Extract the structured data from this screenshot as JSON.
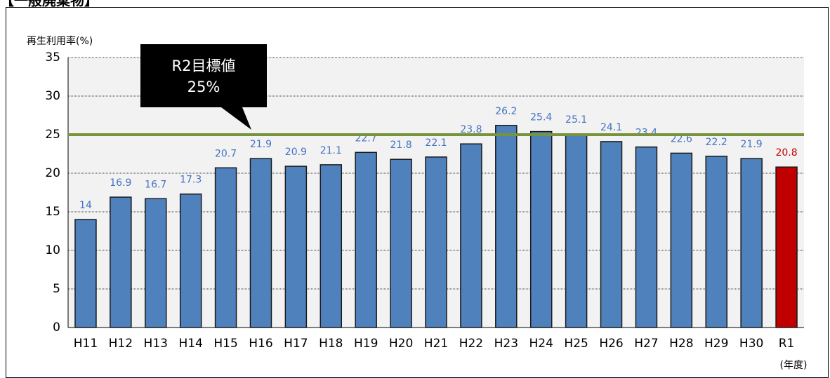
{
  "header": "【一般廃棄物】",
  "chart_data": {
    "type": "bar",
    "y_label": "再生利用率(%)",
    "x_label": "(年度)",
    "categories": [
      "H11",
      "H12",
      "H13",
      "H14",
      "H15",
      "H16",
      "H17",
      "H18",
      "H19",
      "H20",
      "H21",
      "H22",
      "H23",
      "H24",
      "H25",
      "H26",
      "H27",
      "H28",
      "H29",
      "H30",
      "R1"
    ],
    "values": [
      14,
      16.9,
      16.7,
      17.3,
      20.7,
      21.9,
      20.9,
      21.1,
      22.7,
      21.8,
      22.1,
      23.8,
      26.2,
      25.4,
      25.1,
      24.1,
      23.4,
      22.6,
      22.2,
      21.9,
      20.8
    ],
    "colors": [
      "#4f81bd",
      "#4f81bd",
      "#4f81bd",
      "#4f81bd",
      "#4f81bd",
      "#4f81bd",
      "#4f81bd",
      "#4f81bd",
      "#4f81bd",
      "#4f81bd",
      "#4f81bd",
      "#4f81bd",
      "#4f81bd",
      "#4f81bd",
      "#4f81bd",
      "#4f81bd",
      "#4f81bd",
      "#4f81bd",
      "#4f81bd",
      "#4f81bd",
      "#c00000"
    ],
    "ylim": [
      0,
      35
    ],
    "yticks": [
      0,
      5,
      10,
      15,
      20,
      25,
      30,
      35
    ],
    "grid": true,
    "reference_line": {
      "value": 25,
      "color": "#77933c",
      "label": [
        "R2目標値",
        "25%"
      ]
    }
  }
}
